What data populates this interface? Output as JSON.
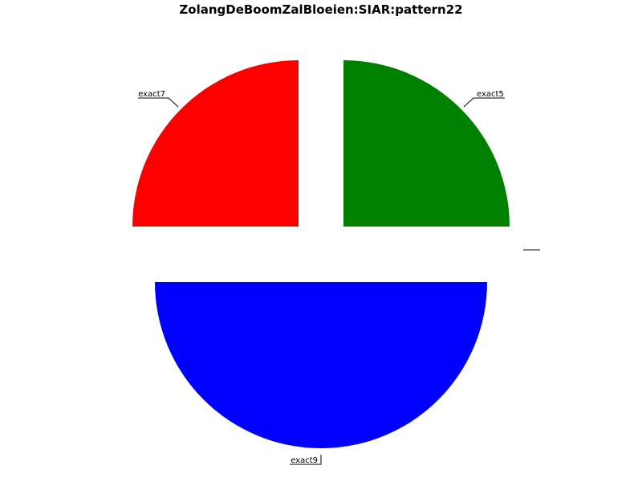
{
  "chart_data": {
    "type": "pie",
    "title": "ZolangDeBoomZalBloeien:SIAR:pattern22",
    "slices": [
      {
        "label": "exact5",
        "value": 1,
        "color": "#008000"
      },
      {
        "label": "exact7",
        "value": 1,
        "color": "#ff0000"
      },
      {
        "label": "exact9",
        "value": 2,
        "color": "#0000ff"
      }
    ],
    "legend": "none"
  }
}
